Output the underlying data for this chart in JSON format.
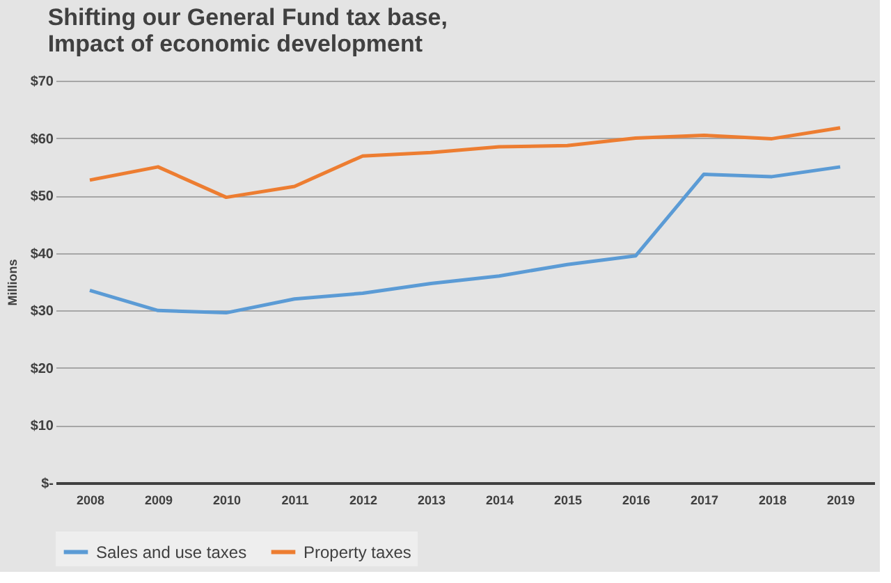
{
  "chart_data": {
    "type": "line",
    "title": "Shifting our General Fund tax base,\nImpact of economic development",
    "ylabel": "Millions",
    "categories": [
      "2008",
      "2009",
      "2010",
      "2011",
      "2012",
      "2013",
      "2014",
      "2015",
      "2016",
      "2017",
      "2018",
      "2019"
    ],
    "series": [
      {
        "name": "Sales and use taxes",
        "color": "#5b9bd5",
        "values": [
          33.5,
          30,
          29.6,
          32,
          33,
          34.7,
          36,
          38,
          39.5,
          53.7,
          53.3,
          55
        ]
      },
      {
        "name": "Property taxes",
        "color": "#ed7d31",
        "values": [
          52.7,
          55,
          49.7,
          51.6,
          56.9,
          57.5,
          58.5,
          58.7,
          60,
          60.5,
          59.9,
          61.8
        ]
      }
    ],
    "ylim": [
      0,
      70
    ],
    "yticks": [
      {
        "value": 0,
        "label": "$-"
      },
      {
        "value": 10,
        "label": "$10"
      },
      {
        "value": 20,
        "label": "$20"
      },
      {
        "value": 30,
        "label": "$30"
      },
      {
        "value": 40,
        "label": "$40"
      },
      {
        "value": 50,
        "label": "$50"
      },
      {
        "value": 60,
        "label": "$60"
      },
      {
        "value": 70,
        "label": "$70"
      }
    ],
    "grid": "y",
    "legend": "bottom",
    "marker": "none",
    "line_style": "solid"
  }
}
